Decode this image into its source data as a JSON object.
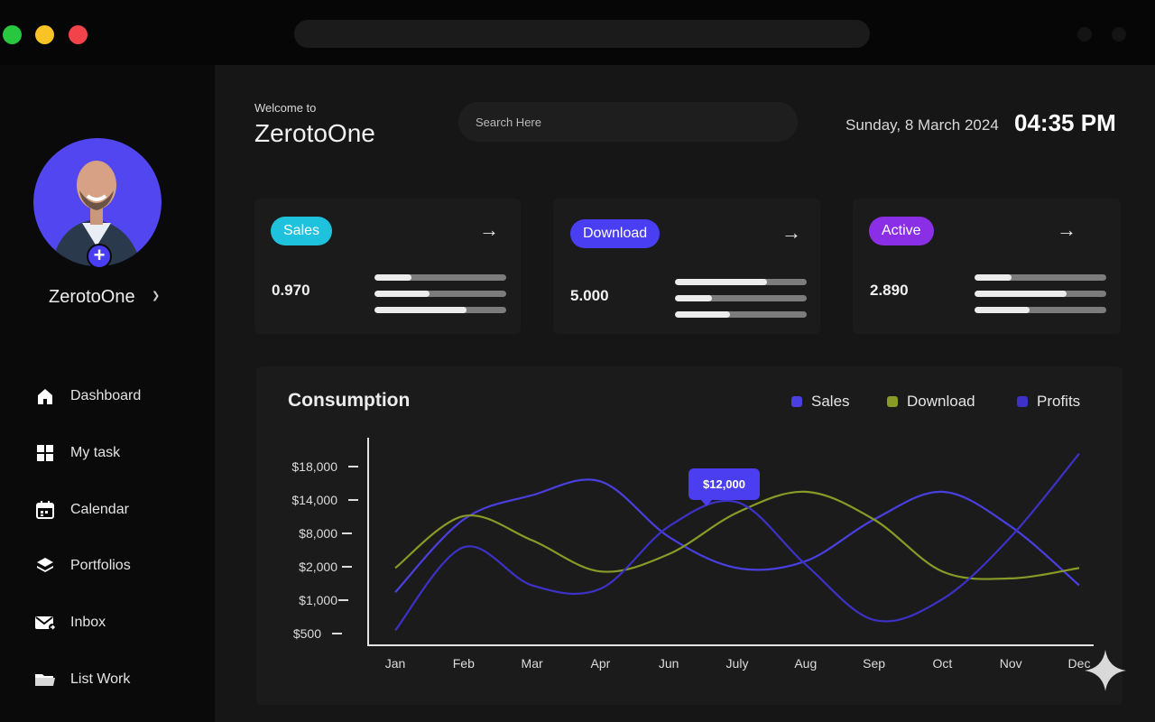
{
  "header": {
    "welcome_small": "Welcome to",
    "welcome_title": "ZerotoOne",
    "search_placeholder": "Search Here",
    "date": "Sunday, 8 March 2024",
    "time": "04:35 PM"
  },
  "user": {
    "name": "ZerotoOne"
  },
  "sidebar": {
    "items": [
      {
        "label": "Dashboard",
        "icon": "home-icon"
      },
      {
        "label": "My task",
        "icon": "grid-icon"
      },
      {
        "label": "Calendar",
        "icon": "calendar-icon"
      },
      {
        "label": "Portfolios",
        "icon": "layers-icon"
      },
      {
        "label": "Inbox",
        "icon": "mail-icon"
      },
      {
        "label": "List Work",
        "icon": "folder-icon"
      }
    ]
  },
  "cards": [
    {
      "label": "Sales",
      "value": "0.970",
      "color": "#1fc2dd",
      "progress": [
        0.28,
        0.42,
        0.7
      ]
    },
    {
      "label": "Download",
      "value": "5.000",
      "color": "#4a3ef2",
      "progress": [
        0.7,
        0.28,
        0.42
      ]
    },
    {
      "label": "Active",
      "value": "2.890",
      "color": "#8a2fe6",
      "progress": [
        0.28,
        0.7,
        0.42
      ]
    }
  ],
  "colors": {
    "accent": "#4b3df0",
    "sales_line": "#4a3fe0",
    "download_line": "#8a9a26",
    "profits_line": "#3d31c8"
  },
  "chart_data": {
    "type": "line",
    "title": "Consumption",
    "categories": [
      "Jan",
      "Feb",
      "Mar",
      "Apr",
      "Jun",
      "July",
      "Aug",
      "Sep",
      "Oct",
      "Nov",
      "Dec"
    ],
    "y_ticks": [
      "$18,000",
      "$14,000",
      "$8,000",
      "$2,000",
      "$1,000",
      "$500"
    ],
    "series": [
      {
        "name": "Sales",
        "color": "#4a3fe0",
        "values": [
          1.4,
          3.5,
          4.2,
          4.6,
          3.0,
          2.1,
          2.3,
          3.5,
          4.3,
          3.3,
          1.6
        ]
      },
      {
        "name": "Download",
        "color": "#8a9a26",
        "values": [
          2.1,
          3.6,
          2.9,
          2.0,
          2.5,
          3.7,
          4.3,
          3.5,
          2.0,
          1.8,
          2.1
        ]
      },
      {
        "name": "Profits",
        "color": "#3d31c8",
        "values": [
          0.3,
          2.7,
          1.6,
          1.5,
          3.3,
          4.0,
          2.2,
          0.6,
          1.2,
          3.0,
          5.4
        ]
      }
    ],
    "tooltip": {
      "category": "July",
      "label": "$12,000"
    },
    "grid": false,
    "legend": "top-right"
  }
}
